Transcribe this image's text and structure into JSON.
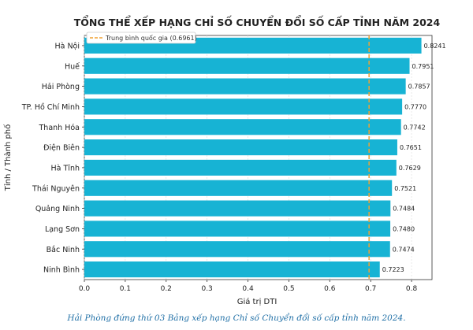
{
  "chart_data": {
    "type": "bar",
    "orientation": "horizontal",
    "title": "TỔNG THỂ XẾP HẠNG CHỈ SỐ CHUYỂN ĐỔI SỐ CẤP TỈNH NĂM 2024",
    "xlabel": "Giá trị DTI",
    "ylabel": "Tỉnh / Thành phố",
    "categories": [
      "Hà Nội",
      "Huế",
      "Hải Phòng",
      "TP. Hồ Chí Minh",
      "Thanh Hóa",
      "Điện Biên",
      "Hà Tĩnh",
      "Thái Nguyên",
      "Quảng Ninh",
      "Lạng Sơn",
      "Bắc Ninh",
      "Ninh Bình"
    ],
    "values": [
      0.8241,
      0.7951,
      0.7857,
      0.777,
      0.7742,
      0.7651,
      0.7629,
      0.7521,
      0.7484,
      0.748,
      0.7474,
      0.7223
    ],
    "value_labels": [
      "0.8241",
      "0.7951",
      "0.7857",
      "0.7770",
      "0.7742",
      "0.7651",
      "0.7629",
      "0.7521",
      "0.7484",
      "0.7480",
      "0.7474",
      "0.7223"
    ],
    "xlim": [
      0,
      0.85
    ],
    "xticks": [
      "0.0",
      "0.1",
      "0.2",
      "0.3",
      "0.4",
      "0.5",
      "0.6",
      "0.7",
      "0.8"
    ],
    "reference_line": {
      "value": 0.6961,
      "label": "Trung bình quốc gia (0.6961)",
      "color": "#f0a030"
    },
    "legend_position": "top-left",
    "grid": true,
    "bar_color": "#17b3d4"
  },
  "caption": "Hải Phòng đứng thứ 03 Bảng xếp hạng Chỉ số Chuyển đổi số cấp tỉnh năm 2024."
}
